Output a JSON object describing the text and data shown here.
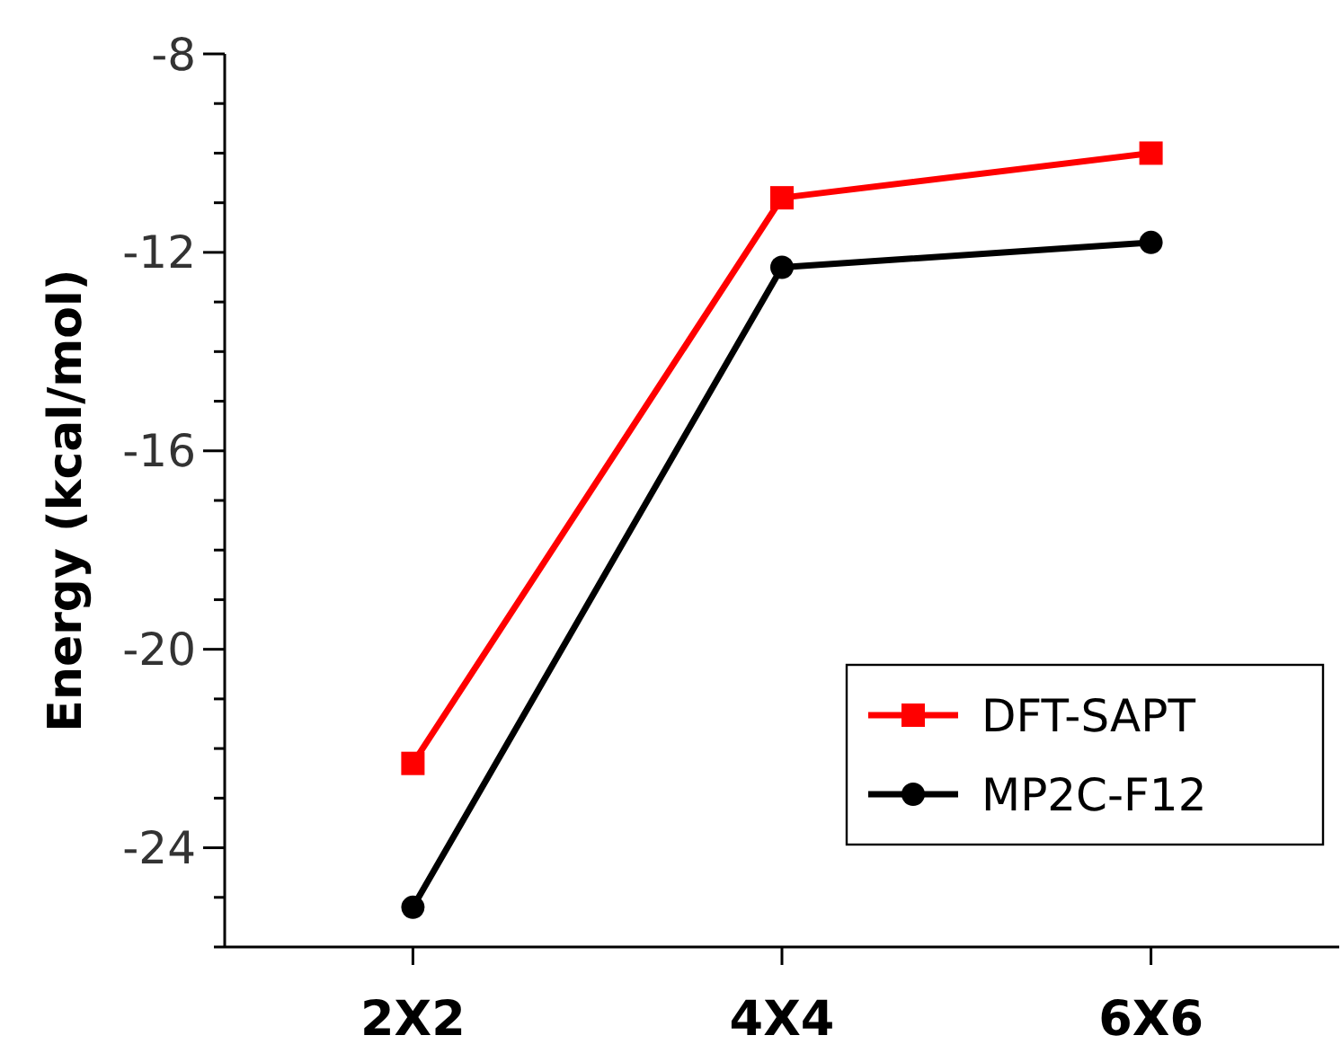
{
  "chart_data": {
    "type": "line",
    "ylabel": "Energy (kcal/mol)",
    "categories": [
      "2X2",
      "4X4",
      "6X6"
    ],
    "series": [
      {
        "name": "DFT-SAPT",
        "color": "#ff0000",
        "marker": "square",
        "values": [
          -22.3,
          -10.9,
          -10.0
        ]
      },
      {
        "name": "MP2C-F12",
        "color": "#000000",
        "marker": "circle",
        "values": [
          -25.2,
          -12.3,
          -11.8
        ]
      }
    ],
    "ylim": [
      -26,
      -8
    ],
    "yticks": [
      {
        "value": -26,
        "label": null
      },
      {
        "value": -25,
        "label": null
      },
      -24,
      {
        "value": -23,
        "label": null
      },
      {
        "value": -22,
        "label": null
      },
      {
        "value": -21,
        "label": null
      },
      -20,
      {
        "value": -19,
        "label": null
      },
      {
        "value": -18,
        "label": null
      },
      {
        "value": -17,
        "label": null
      },
      -16,
      {
        "value": -15,
        "label": null
      },
      {
        "value": -14,
        "label": null
      },
      {
        "value": -13,
        "label": null
      },
      -12,
      {
        "value": -11,
        "label": null
      },
      {
        "value": -10,
        "label": null
      },
      {
        "value": -9,
        "label": null
      },
      -8
    ],
    "legend": "bottom right",
    "grid": false,
    "line_style": "solid"
  }
}
